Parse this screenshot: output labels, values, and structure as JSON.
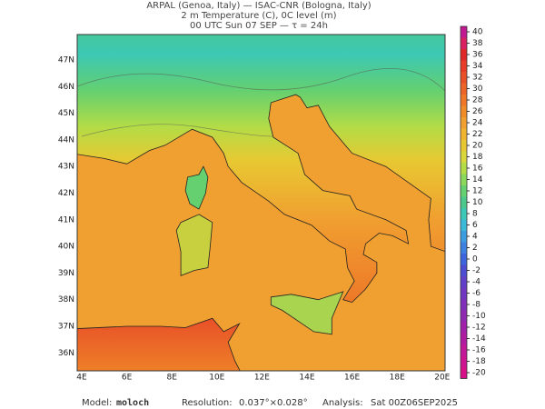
{
  "header": {
    "line1": "ARPAL (Genoa, Italy)  —  ISAC-CNR (Bologna, Italy)",
    "line2": "2 m Temperature (C), 0C level (m)",
    "line3": "00 UTC Sun 07 SEP  —  τ = 24h"
  },
  "map": {
    "lat_labels": [
      "47N",
      "46N",
      "45N",
      "44N",
      "43N",
      "42N",
      "41N",
      "40N",
      "39N",
      "38N",
      "37N",
      "36N"
    ],
    "lon_labels": [
      "4E",
      "6E",
      "8E",
      "10E",
      "12E",
      "14E",
      "16E",
      "18E",
      "20E"
    ]
  },
  "colorbar": {
    "labels": [
      40,
      38,
      36,
      34,
      32,
      30,
      28,
      26,
      24,
      22,
      20,
      18,
      16,
      14,
      12,
      10,
      8,
      6,
      4,
      2,
      0,
      -2,
      -4,
      -6,
      -8,
      -10,
      -12,
      -14,
      -16,
      -18,
      -20
    ],
    "colors": [
      "#c01890",
      "#d82060",
      "#e02828",
      "#e83c28",
      "#e85028",
      "#ec6428",
      "#ee7828",
      "#f08c28",
      "#f0a030",
      "#f0b430",
      "#e8c832",
      "#d8d83c",
      "#b4dc46",
      "#8cd85a",
      "#64d070",
      "#4cc88c",
      "#3cc8b4",
      "#3cb8d8",
      "#3c9ce0",
      "#3c80e0",
      "#3c64dc",
      "#4c4cd0",
      "#6040c8",
      "#7038c0",
      "#8030b8",
      "#9028b0",
      "#a020a8",
      "#b01ca0",
      "#c01898",
      "#cc1490",
      "#d81088"
    ]
  },
  "footer": {
    "model_label": "Model:",
    "model": "moloch",
    "resolution_label": "Resolution:",
    "resolution": "0.037°×0.028°",
    "analysis_label": "Analysis:",
    "analysis": "Sat 00Z06SEP2025"
  }
}
